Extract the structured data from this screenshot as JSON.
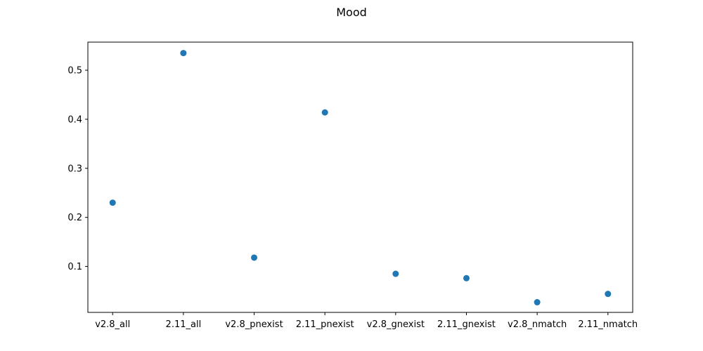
{
  "chart_data": {
    "type": "scatter",
    "title": "Mood",
    "xlabel": "",
    "ylabel": "",
    "categories": [
      "v2.8_all",
      "2.11_all",
      "v2.8_pnexist",
      "2.11_pnexist",
      "v2.8_gnexist",
      "2.11_gnexist",
      "v2.8_nmatch",
      "2.11_nmatch"
    ],
    "values": [
      0.23,
      0.535,
      0.118,
      0.414,
      0.085,
      0.076,
      0.027,
      0.044
    ],
    "ylim": [
      0.0063,
      0.5573
    ],
    "yticks": [
      0.1,
      0.2,
      0.3,
      0.4,
      0.5
    ],
    "ytick_labels": [
      "0.1",
      "0.2",
      "0.3",
      "0.4",
      "0.5"
    ],
    "grid": false,
    "legend": "none",
    "marker_color": "#1f77b4"
  }
}
